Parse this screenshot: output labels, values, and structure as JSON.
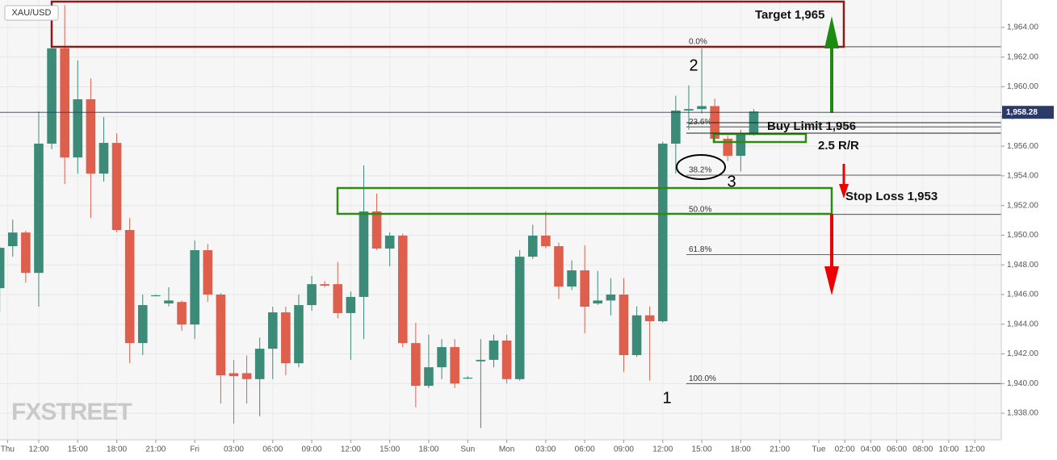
{
  "chart_data": {
    "type": "candlestick",
    "symbol": "XAU/USD",
    "watermark": "FXSTREET",
    "colors": {
      "up": "#3b8b78",
      "down": "#de5f4c"
    },
    "grid": true,
    "x": [
      -3,
      -2,
      -1,
      0,
      1,
      2,
      3,
      4,
      5,
      6,
      7,
      8,
      9,
      10,
      11,
      12,
      13,
      14,
      15,
      16,
      17,
      18,
      19,
      20,
      21,
      22,
      23,
      24,
      25,
      26,
      27,
      28,
      29,
      30,
      31,
      32,
      33,
      34,
      35,
      36,
      37,
      38,
      39,
      40,
      41,
      42,
      43,
      44,
      45,
      46,
      47,
      48,
      49,
      50,
      51,
      52,
      53,
      54,
      55
    ],
    "open": [
      1946.43,
      1949.26,
      1950.18,
      1947.46,
      1956.17,
      1962.59,
      1955.24,
      1959.16,
      1954.15,
      1956.22,
      1950.35,
      1942.73,
      1945.95,
      1945.4,
      1945.5,
      1943.98,
      1948.99,
      1946.0,
      1940.7,
      1940.7,
      1940.3,
      1942.35,
      1944.8,
      1941.37,
      1945.29,
      1946.7,
      1946.7,
      1944.75,
      1945.84,
      1951.6,
      1949.1,
      1949.97,
      1942.73,
      1939.85,
      1941.1,
      1942.46,
      1940.4,
      1941.5,
      1941.6,
      1942.9,
      1940.3,
      1948.55,
      1949.97,
      1949.26,
      1946.54,
      1947.63,
      1945.4,
      1945.6,
      1946.0,
      1941.92,
      1944.6,
      1944.2,
      1956.17,
      1958.4,
      1958.5,
      1958.7,
      1956.5,
      1955.35,
      1956.87
    ],
    "high": [
      1949.3,
      1951.05,
      1950.3,
      1958.34,
      1962.7,
      1965.5,
      1961.77,
      1960.57,
      1957.96,
      1956.87,
      1951.16,
      1946.0,
      1946.0,
      1946.5,
      1945.6,
      1949.64,
      1949.4,
      1946.1,
      1941.6,
      1941.9,
      1943.1,
      1945.18,
      1945.18,
      1946.0,
      1947.25,
      1946.9,
      1948.2,
      1946.2,
      1954.7,
      1952.8,
      1950.2,
      1950.1,
      1944.1,
      1943.3,
      1943.0,
      1943.0,
      1940.5,
      1943.0,
      1943.3,
      1943.3,
      1949.0,
      1950.7,
      1951.6,
      1949.5,
      1948.3,
      1949.3,
      1947.6,
      1947.1,
      1947.1,
      1945.2,
      1945.2,
      1956.3,
      1959.4,
      1960.1,
      1962.6,
      1959.2,
      1956.7,
      1957.1,
      1958.5
    ],
    "low": [
      1944.8,
      1948.55,
      1946.8,
      1945.18,
      1955.8,
      1953.45,
      1954.15,
      1951.16,
      1953.61,
      1950.2,
      1941.37,
      1941.92,
      1945.9,
      1945.2,
      1943.55,
      1943.0,
      1945.5,
      1938.65,
      1937.3,
      1938.65,
      1937.8,
      1940.3,
      1940.56,
      1941.1,
      1944.9,
      1946.5,
      1944.4,
      1941.6,
      1943.0,
      1949.0,
      1947.9,
      1942.45,
      1938.4,
      1939.7,
      1940.3,
      1939.7,
      1940.3,
      1937.0,
      1941.1,
      1940.0,
      1940.2,
      1948.4,
      1949.1,
      1945.7,
      1946.3,
      1943.4,
      1945.3,
      1944.6,
      1940.8,
      1941.8,
      1940.2,
      1944.1,
      1954.15,
      1957.1,
      1958.2,
      1956.2,
      1955.0,
      1954.3,
      1956.7
    ],
    "close": [
      1949.15,
      1950.18,
      1947.46,
      1956.17,
      1962.59,
      1955.24,
      1959.16,
      1954.15,
      1956.22,
      1950.35,
      1942.73,
      1945.29,
      1945.95,
      1945.6,
      1943.98,
      1948.99,
      1946.0,
      1940.56,
      1940.5,
      1940.3,
      1942.35,
      1944.8,
      1941.37,
      1945.29,
      1946.7,
      1946.6,
      1944.75,
      1945.84,
      1951.6,
      1949.1,
      1949.97,
      1942.73,
      1939.85,
      1941.1,
      1942.46,
      1940.0,
      1940.4,
      1941.6,
      1942.9,
      1940.3,
      1948.55,
      1949.97,
      1949.26,
      1946.54,
      1947.63,
      1945.18,
      1945.6,
      1946.0,
      1941.92,
      1944.6,
      1944.2,
      1956.17,
      1958.4,
      1958.5,
      1958.7,
      1956.5,
      1955.35,
      1956.87,
      1958.34
    ],
    "xlim": [
      -2.98,
      74.04
    ],
    "ylim": [
      1936.21,
      1965.85
    ],
    "xticks": [
      {
        "value": -2.4,
        "label": "Thu"
      },
      {
        "value": 0,
        "label": "12:00"
      },
      {
        "value": 3,
        "label": "15:00"
      },
      {
        "value": 6,
        "label": "18:00"
      },
      {
        "value": 9,
        "label": "21:00"
      },
      {
        "value": 12,
        "label": "Fri"
      },
      {
        "value": 15,
        "label": "03:00"
      },
      {
        "value": 18,
        "label": "06:00"
      },
      {
        "value": 21,
        "label": "09:00"
      },
      {
        "value": 24,
        "label": "12:00"
      },
      {
        "value": 27,
        "label": "15:00"
      },
      {
        "value": 30,
        "label": "18:00"
      },
      {
        "value": 33,
        "label": "Sun"
      },
      {
        "value": 36,
        "label": "Mon"
      },
      {
        "value": 39,
        "label": "03:00"
      },
      {
        "value": 42,
        "label": "06:00"
      },
      {
        "value": 45,
        "label": "09:00"
      },
      {
        "value": 48,
        "label": "12:00"
      },
      {
        "value": 51,
        "label": "15:00"
      },
      {
        "value": 54,
        "label": "18:00"
      },
      {
        "value": 57,
        "label": "21:00"
      },
      {
        "value": 60,
        "label": "Tue"
      },
      {
        "value": 62,
        "label": "02:00"
      },
      {
        "value": 64,
        "label": "04:00"
      },
      {
        "value": 66,
        "label": "06:00"
      },
      {
        "value": 68,
        "label": "08:00"
      },
      {
        "value": 70,
        "label": "10:00"
      },
      {
        "value": 72,
        "label": "12:00"
      }
    ],
    "yticks": [
      {
        "value": 1938,
        "label": "1,938.00"
      },
      {
        "value": 1940,
        "label": "1,940.00"
      },
      {
        "value": 1942,
        "label": "1,942.00"
      },
      {
        "value": 1944,
        "label": "1,944.00"
      },
      {
        "value": 1946,
        "label": "1,946.00"
      },
      {
        "value": 1948,
        "label": "1,948.00"
      },
      {
        "value": 1950,
        "label": "1,950.00"
      },
      {
        "value": 1952,
        "label": "1,952.00"
      },
      {
        "value": 1954,
        "label": "1,954.00"
      },
      {
        "value": 1956,
        "label": "1,956.00"
      },
      {
        "value": 1958,
        "label": "1,958.00"
      },
      {
        "value": 1960,
        "label": "1,960.00"
      },
      {
        "value": 1962,
        "label": "1,962.00"
      },
      {
        "value": 1964,
        "label": "1,964.00"
      }
    ],
    "last_price": {
      "value": 1958.28,
      "label": "1,958.28"
    },
    "fib": [
      {
        "label": "0.0%",
        "value": 1962.7
      },
      {
        "label": "23.6%",
        "value": 1957.3
      },
      {
        "label": "38.2%",
        "value": 1954.05
      },
      {
        "label": "50.0%",
        "value": 1951.4
      },
      {
        "label": "61.8%",
        "value": 1948.7
      },
      {
        "label": "100.0%",
        "value": 1940.0
      }
    ],
    "annotations": {
      "target": "Target 1,965",
      "buy_limit": "Buy Limit 1,956",
      "risk_reward": "2.5 R/R",
      "stop_loss": "Stop Loss 1,953",
      "wave_1": "1",
      "wave_2": "2",
      "wave_3": "3"
    }
  }
}
